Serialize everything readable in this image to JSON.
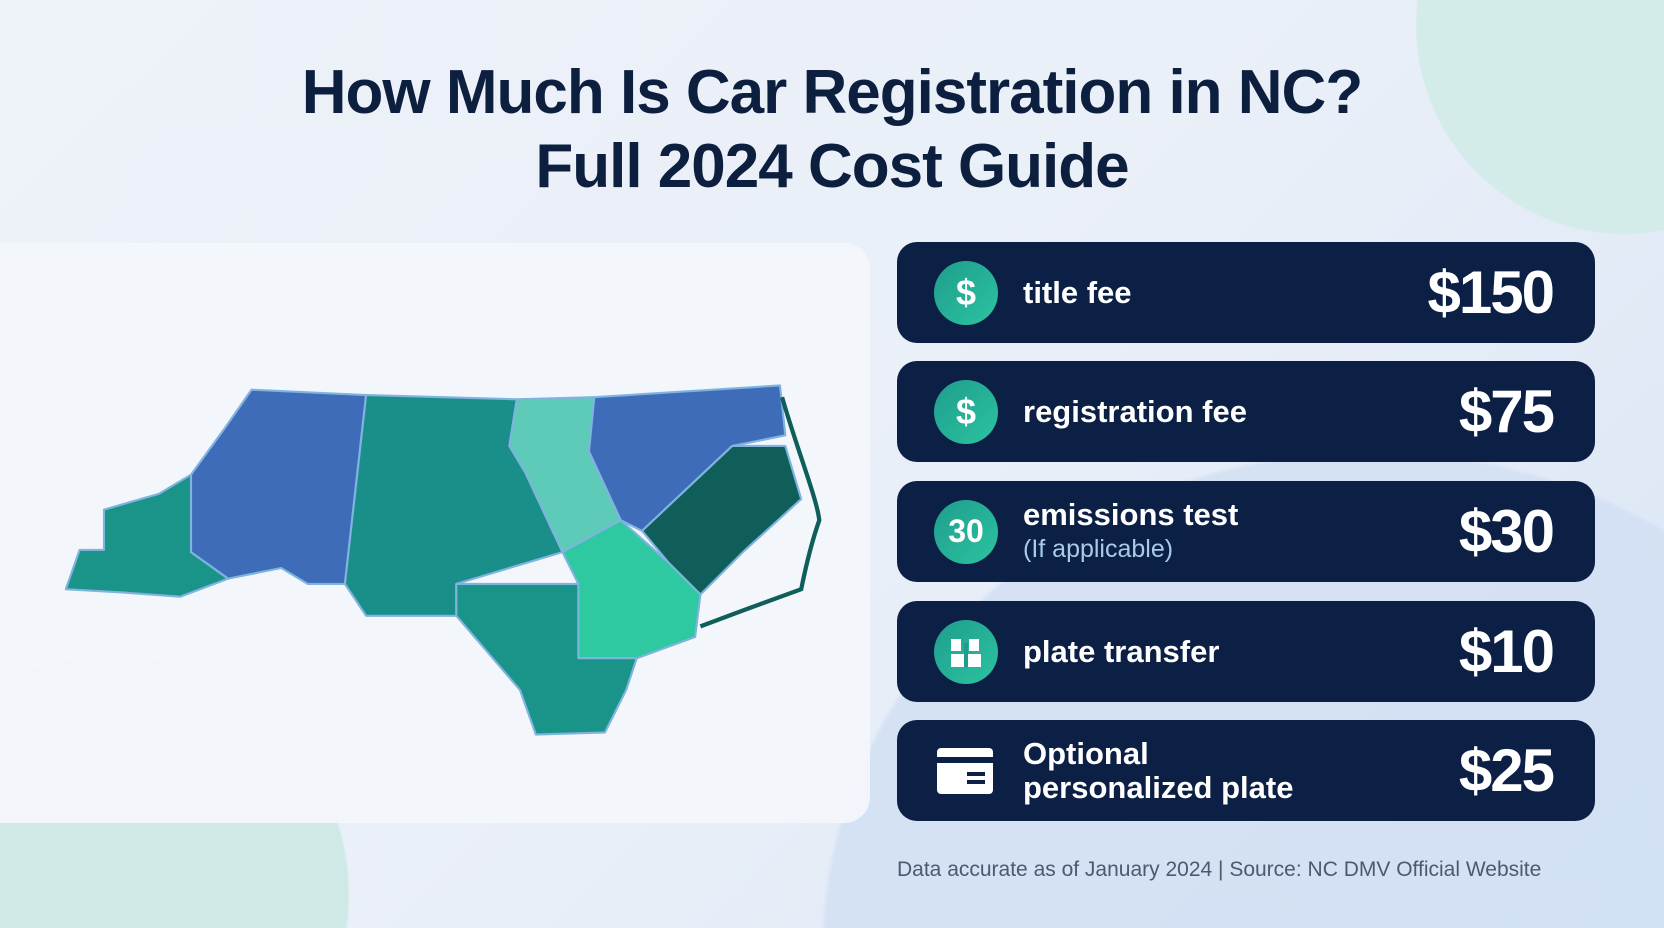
{
  "title": {
    "line1": "How Much Is Car Registration in NC?",
    "line2": "Full 2024 Cost Guide"
  },
  "fees": [
    {
      "icon": "dollar-icon",
      "icon_text": "$",
      "label": "title fee",
      "value": "$150"
    },
    {
      "icon": "dollar-icon",
      "icon_text": "$",
      "label": "registration fee",
      "value": "$75"
    },
    {
      "icon": "number-badge-icon",
      "icon_text": "30",
      "label": "emissions test",
      "sublabel": "(If applicable)",
      "value": "$30"
    },
    {
      "icon": "plate-transfer-icon",
      "label": "plate transfer",
      "value": "$10"
    },
    {
      "icon": "card-icon",
      "label_line1": "Optional",
      "label_line2": "personalized plate",
      "value": "$25"
    }
  ],
  "footer": "Data accurate as of January 2024 | Source: NC DMV Official Website",
  "colors": {
    "card": "#0c2045",
    "accent": "#2cc3a1",
    "map_blue": "#3f6cb8",
    "map_teal": "#1a9488"
  }
}
